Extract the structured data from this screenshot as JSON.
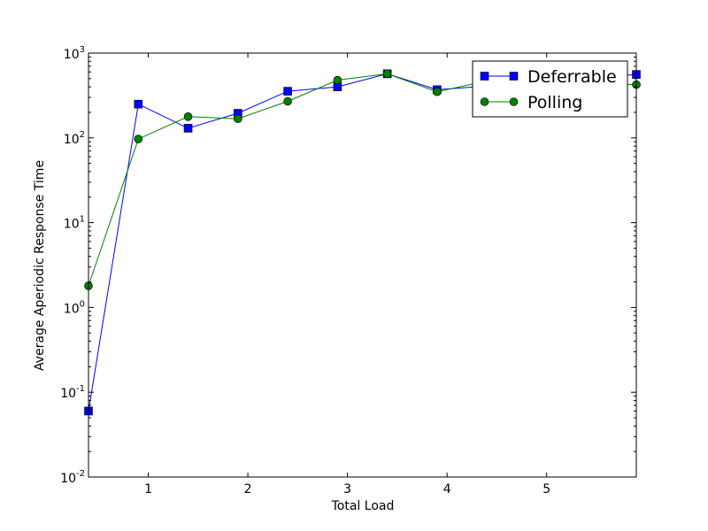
{
  "chart_data": {
    "type": "line",
    "title": "",
    "xlabel": "Total Load",
    "ylabel": "Average Aperiodic Response Time",
    "yscale": "log",
    "xlim": [
      0.4,
      5.9
    ],
    "ylim": [
      0.01,
      1000
    ],
    "x_ticks": [
      "1",
      "2",
      "3",
      "4",
      "5"
    ],
    "y_ticks": [
      {
        "base": "10",
        "exp": "-2"
      },
      {
        "base": "10",
        "exp": "-1"
      },
      {
        "base": "10",
        "exp": "0"
      },
      {
        "base": "10",
        "exp": "1"
      },
      {
        "base": "10",
        "exp": "2"
      },
      {
        "base": "10",
        "exp": "3"
      }
    ],
    "grid": false,
    "legend_position": "top-right",
    "x": [
      0.4,
      0.9,
      1.4,
      1.9,
      2.4,
      2.9,
      3.4,
      3.9,
      4.4,
      4.9,
      5.4,
      5.9
    ],
    "series": [
      {
        "name": "Deferrable",
        "color": "#0000ff",
        "marker": "square",
        "values": [
          0.06,
          250,
          130,
          195,
          355,
          400,
          570,
          370,
          410,
          450,
          500,
          560
        ]
      },
      {
        "name": "Polling",
        "color": "#008000",
        "marker": "circle",
        "values": [
          1.8,
          97,
          178,
          168,
          270,
          480,
          570,
          350,
          470,
          440,
          430,
          425
        ]
      }
    ]
  }
}
